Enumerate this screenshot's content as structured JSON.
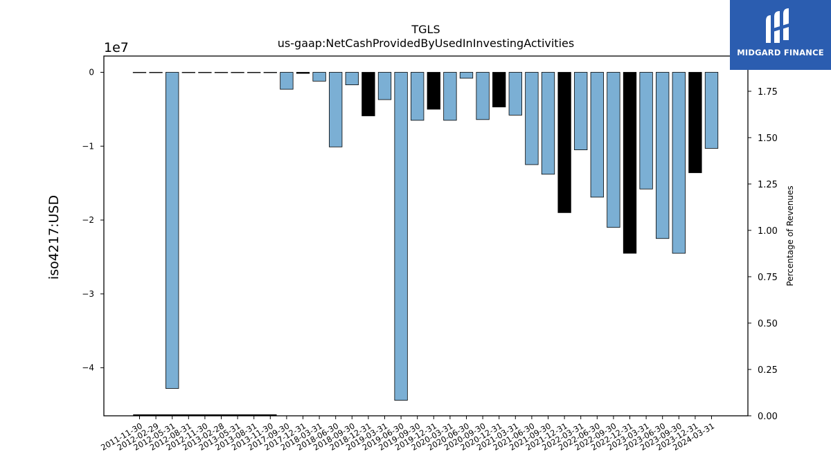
{
  "brand": {
    "name": "MIDGARD FINANCE",
    "bg_color": "#2b5db0"
  },
  "chart_data": {
    "type": "bar",
    "title": "TGLS",
    "subtitle": "us-gaap:NetCashProvidedByUsedInInvestingActivities",
    "ylabel": "iso4217:USD",
    "ylabel_right": "Percentage of Revenues",
    "y_offset_label": "1e7",
    "ylim": [
      -46500000,
      2200000
    ],
    "ylim_right": [
      0,
      1.94
    ],
    "y_ticks": [
      0,
      -10000000,
      -20000000,
      -30000000,
      -40000000
    ],
    "y_tick_labels": [
      "0",
      "−1",
      "−2",
      "−3",
      "−4"
    ],
    "y_ticks_right": [
      0.0,
      0.25,
      0.5,
      0.75,
      1.0,
      1.25,
      1.5,
      1.75
    ],
    "y_tick_labels_right": [
      "0.00",
      "0.25",
      "0.50",
      "0.75",
      "1.00",
      "1.25",
      "1.50",
      "1.75"
    ],
    "grid": false,
    "colors": {
      "quarterly": "#7bafd4",
      "annual": "#000000",
      "edge": "#000000"
    },
    "categories": [
      "2011-11-30",
      "2012-02-29",
      "2012-05-31",
      "2012-08-31",
      "2012-11-30",
      "2013-02-28",
      "2013-05-31",
      "2013-08-31",
      "2013-11-30",
      "2017-09-30",
      "2017-12-31",
      "2018-03-31",
      "2018-06-30",
      "2018-09-30",
      "2018-12-31",
      "2019-03-31",
      "2019-06-30",
      "2019-09-30",
      "2019-12-31",
      "2020-03-31",
      "2020-06-30",
      "2020-09-30",
      "2020-12-31",
      "2021-03-31",
      "2021-06-30",
      "2021-09-30",
      "2021-12-31",
      "2022-03-31",
      "2022-06-30",
      "2022-09-30",
      "2022-12-31",
      "2023-03-31",
      "2023-06-30",
      "2023-09-30",
      "2023-12-31",
      "2024-03-31"
    ],
    "series": [
      {
        "values": [
          -50000,
          -50000,
          -42800000,
          -50000,
          -50000,
          -50000,
          -50000,
          -50000,
          -50000,
          -2300000,
          -150000,
          -1200000,
          -10100000,
          -1700000,
          -5900000,
          -3700000,
          -44400000,
          -6500000,
          -5000000,
          -6500000,
          -800000,
          -6400000,
          -4700000,
          -5800000,
          -12500000,
          -13800000,
          -19000000,
          -10500000,
          -16900000,
          -21000000,
          -24500000,
          -15800000,
          -22500000,
          -24500000,
          -13600000,
          -10300000
        ],
        "kinds": [
          "q",
          "q",
          "q",
          "q",
          "q",
          "q",
          "q",
          "q",
          "q",
          "q",
          "a",
          "q",
          "q",
          "q",
          "a",
          "q",
          "q",
          "q",
          "a",
          "q",
          "q",
          "q",
          "a",
          "q",
          "q",
          "q",
          "a",
          "q",
          "q",
          "q",
          "a",
          "q",
          "q",
          "q",
          "a",
          "q"
        ]
      }
    ],
    "pct_revenue_line": {
      "from_category": "2011-11-30",
      "to_category": "2013-11-30",
      "value": 0.0
    }
  }
}
